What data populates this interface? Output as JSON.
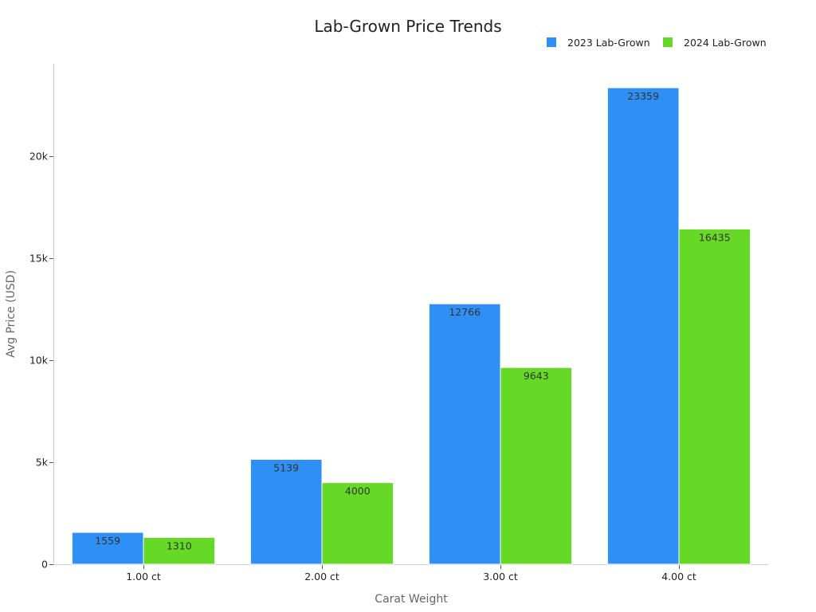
{
  "chart_data": {
    "type": "bar",
    "title": "Lab-Grown Price Trends",
    "xlabel": "Carat Weight",
    "ylabel": "Avg Price (USD)",
    "categories": [
      "1.00 ct",
      "2.00 ct",
      "3.00 ct",
      "4.00 ct"
    ],
    "series": [
      {
        "name": "2023 Lab-Grown",
        "color": "#2e90f5",
        "values": [
          1559,
          5139,
          12766,
          23359
        ]
      },
      {
        "name": "2024 Lab-Grown",
        "color": "#66d926",
        "values": [
          1310,
          4000,
          9643,
          16435
        ]
      }
    ],
    "ylim": [
      0,
      24535
    ],
    "yticks": [
      0,
      5000,
      10000,
      15000,
      20000
    ],
    "ytick_labels": [
      "0",
      "5k",
      "10k",
      "15k",
      "20k"
    ],
    "grid": false,
    "legend_position": "top-right",
    "data_labels": true
  }
}
